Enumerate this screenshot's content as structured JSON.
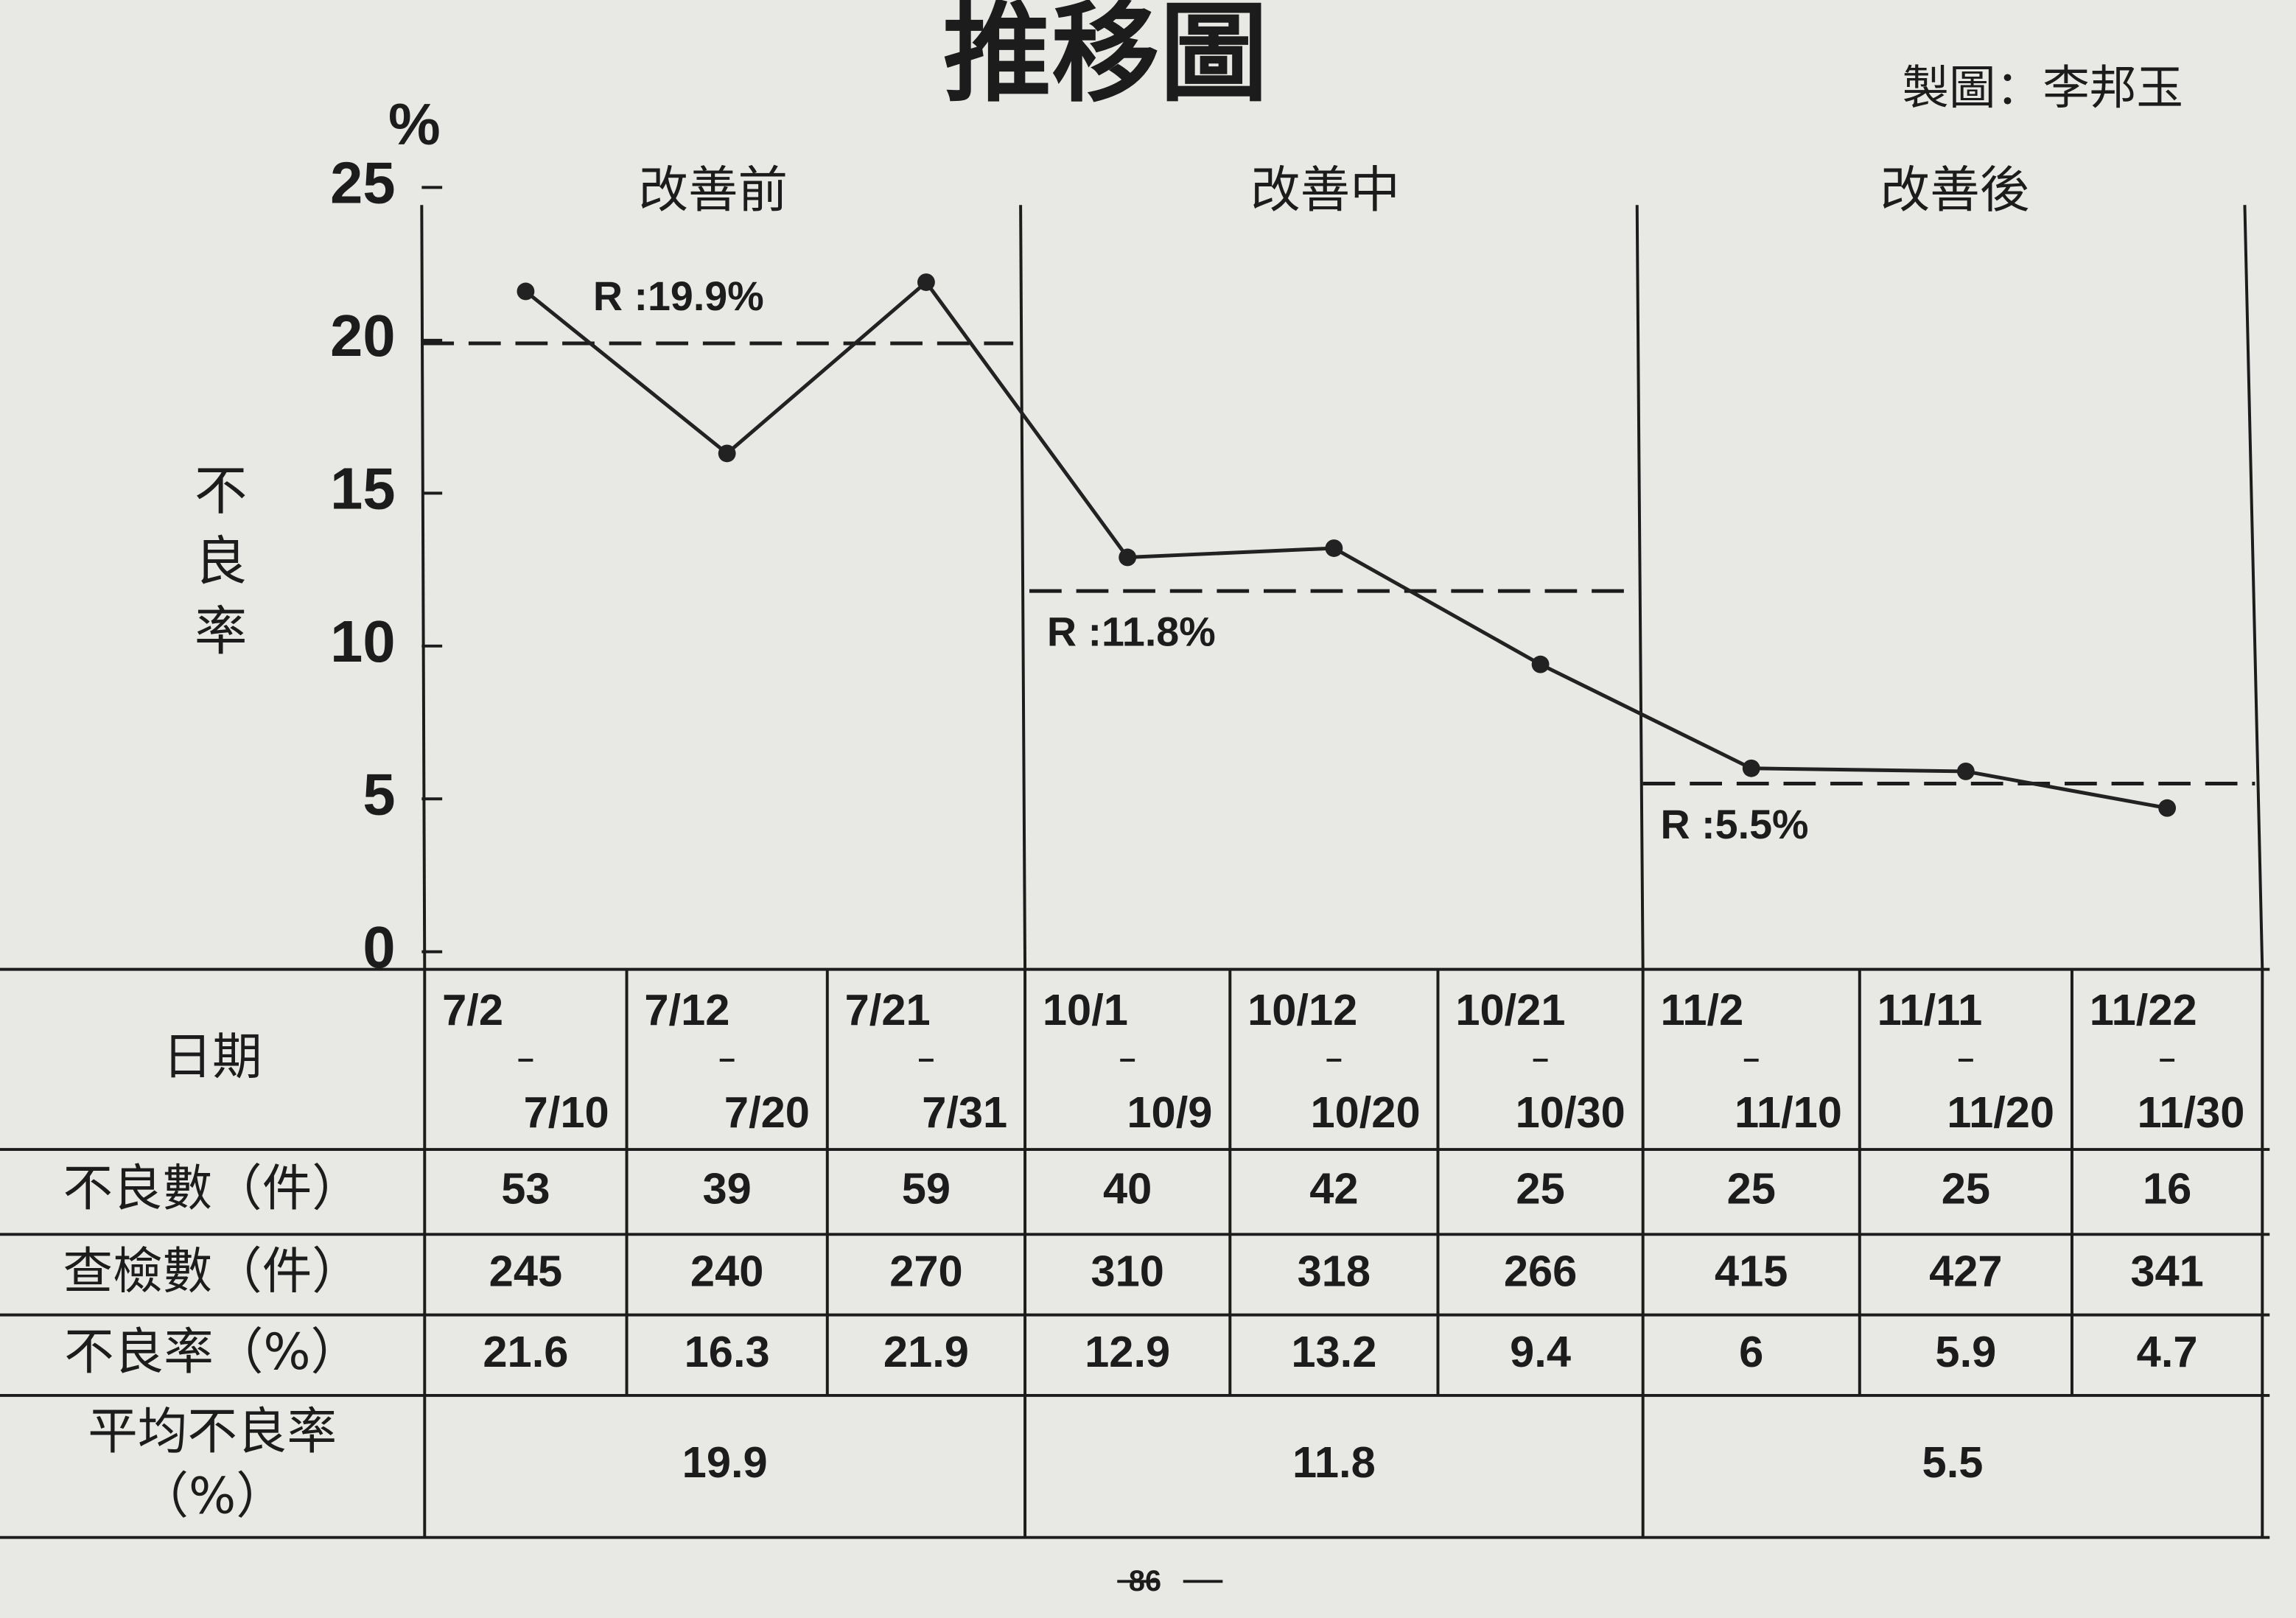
{
  "title": "推移圖",
  "author": "製圖：李邦玉",
  "chart_data": {
    "type": "line",
    "y_unit": "%",
    "y_label": "不良率",
    "values": [
      21.6,
      16.3,
      21.9,
      12.9,
      13.2,
      9.4,
      6,
      5.9,
      4.7
    ],
    "color": "#222222",
    "ylim": [
      0,
      25
    ],
    "yticks": [
      0,
      5,
      10,
      15,
      20,
      25
    ],
    "phases": [
      {
        "name": "改善前",
        "mean": 19.9,
        "mean_label": "R :19.9%"
      },
      {
        "name": "改善中",
        "mean": 11.8,
        "mean_label": "R :11.8%"
      },
      {
        "name": "改善後",
        "mean": 5.5,
        "mean_label": "R :5.5%"
      }
    ]
  },
  "table": {
    "header_label": "日期",
    "dates": [
      {
        "start": "7/2",
        "end": "7/10"
      },
      {
        "start": "7/12",
        "end": "7/20"
      },
      {
        "start": "7/21",
        "end": "7/31"
      },
      {
        "start": "10/1",
        "end": "10/9"
      },
      {
        "start": "10/12",
        "end": "10/20"
      },
      {
        "start": "10/21",
        "end": "10/30"
      },
      {
        "start": "11/2",
        "end": "11/10"
      },
      {
        "start": "11/11",
        "end": "11/20"
      },
      {
        "start": "11/22",
        "end": "11/30"
      }
    ],
    "rows": [
      {
        "label": "不良數（件）",
        "values": [
          53,
          39,
          59,
          40,
          42,
          25,
          25,
          25,
          16
        ]
      },
      {
        "label": "查檢數（件）",
        "values": [
          245,
          240,
          270,
          310,
          318,
          266,
          415,
          427,
          341
        ]
      },
      {
        "label": "不良率（%）",
        "values": [
          21.6,
          16.3,
          21.9,
          12.9,
          13.2,
          9.4,
          6,
          5.9,
          4.7
        ]
      }
    ],
    "average": {
      "label": [
        "平均不良率",
        "（%）"
      ],
      "values": [
        19.9,
        11.8,
        5.5
      ]
    }
  },
  "page_number": 86
}
